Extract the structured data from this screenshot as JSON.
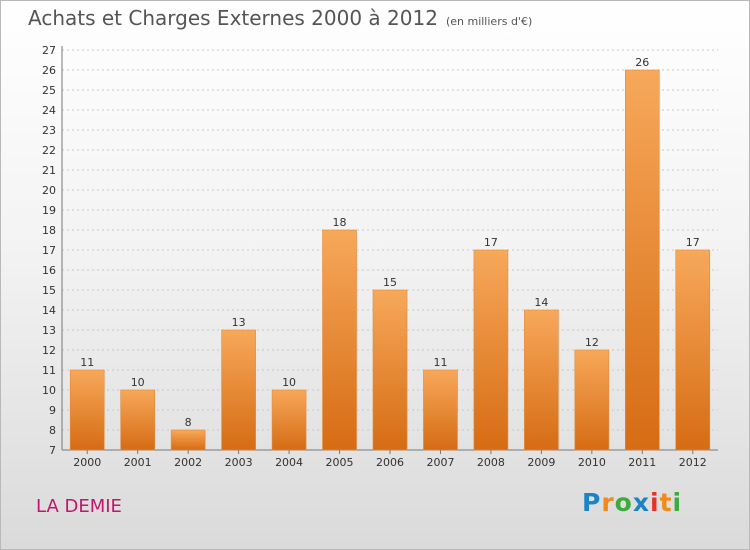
{
  "title": "Achats et Charges Externes 2000 à 2012",
  "unit_note": "(en milliers d'€)",
  "commune": "LA DEMIE",
  "logo": {
    "text": "Proxiti",
    "letters": [
      {
        "char": "P",
        "color": "#1b83c6"
      },
      {
        "char": "r",
        "color": "#f08a1c"
      },
      {
        "char": "o",
        "color": "#3cab3b"
      },
      {
        "char": "x",
        "color": "#1b83c6"
      },
      {
        "char": "i",
        "color": "#e5332a"
      },
      {
        "char": "t",
        "color": "#f08a1c"
      },
      {
        "char": "i",
        "color": "#3cab3b"
      }
    ]
  },
  "colors": {
    "bar_light": "#f7a85a",
    "bar_dark": "#d66c14",
    "title": "#555555",
    "commune": "#c0166d"
  },
  "chart_data": {
    "type": "bar",
    "title": "Achats et Charges Externes 2000 à 2012",
    "subtitle": "(en milliers d'€)",
    "categories": [
      "2000",
      "2001",
      "2002",
      "2003",
      "2004",
      "2005",
      "2006",
      "2007",
      "2008",
      "2009",
      "2010",
      "2011",
      "2012"
    ],
    "values": [
      11,
      10,
      8,
      13,
      10,
      18,
      15,
      11,
      17,
      14,
      12,
      26,
      17
    ],
    "value_labels": [
      "11",
      "10",
      "8",
      "13",
      "10",
      "18",
      "15",
      "11",
      "17",
      "14",
      "12",
      "26",
      "17"
    ],
    "ylim": [
      7,
      27
    ],
    "yticks": [
      7,
      8,
      9,
      10,
      11,
      12,
      13,
      14,
      15,
      16,
      17,
      18,
      19,
      20,
      21,
      22,
      23,
      24,
      25,
      26,
      27
    ],
    "grid": true,
    "xlabel": "",
    "ylabel": ""
  }
}
